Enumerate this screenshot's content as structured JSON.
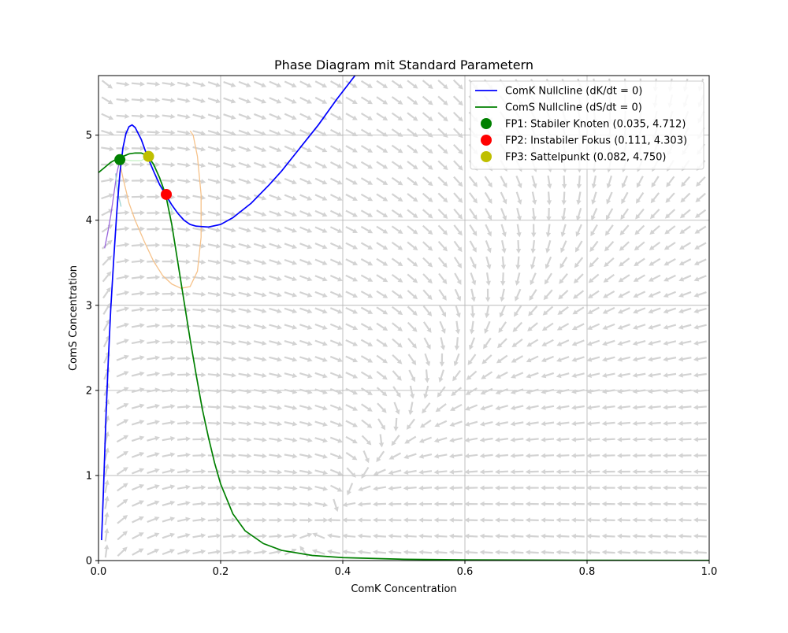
{
  "chart_data": {
    "type": "line",
    "title": "Phase Diagram mit Standard Parametern",
    "xlabel": "ComK Concentration",
    "ylabel": "ComS Concentration",
    "xlim": [
      0,
      1.0
    ],
    "ylim": [
      0,
      5.7
    ],
    "grid": true,
    "legend_position": "top-right",
    "x_ticks": [
      "0.0",
      "0.2",
      "0.4",
      "0.6",
      "0.8",
      "1.0"
    ],
    "y_ticks": [
      "0",
      "1",
      "2",
      "3",
      "4",
      "5"
    ],
    "series": [
      {
        "name": "ComK Nullcline (dK/dt = 0)",
        "color": "#0000ff",
        "points": [
          [
            0.005,
            0.24
          ],
          [
            0.008,
            0.8
          ],
          [
            0.012,
            1.65
          ],
          [
            0.016,
            2.35
          ],
          [
            0.02,
            2.95
          ],
          [
            0.025,
            3.55
          ],
          [
            0.03,
            4.1
          ],
          [
            0.035,
            4.55
          ],
          [
            0.04,
            4.85
          ],
          [
            0.045,
            5.02
          ],
          [
            0.05,
            5.1
          ],
          [
            0.055,
            5.12
          ],
          [
            0.06,
            5.09
          ],
          [
            0.07,
            4.95
          ],
          [
            0.08,
            4.75
          ],
          [
            0.09,
            4.58
          ],
          [
            0.1,
            4.42
          ],
          [
            0.11,
            4.3
          ],
          [
            0.12,
            4.18
          ],
          [
            0.13,
            4.08
          ],
          [
            0.14,
            4.0
          ],
          [
            0.15,
            3.95
          ],
          [
            0.16,
            3.93
          ],
          [
            0.18,
            3.92
          ],
          [
            0.2,
            3.95
          ],
          [
            0.22,
            4.03
          ],
          [
            0.25,
            4.2
          ],
          [
            0.28,
            4.42
          ],
          [
            0.3,
            4.58
          ],
          [
            0.33,
            4.85
          ],
          [
            0.36,
            5.12
          ],
          [
            0.39,
            5.42
          ],
          [
            0.42,
            5.7
          ]
        ]
      },
      {
        "name": "ComS Nullcline (dS/dt = 0)",
        "color": "#008000",
        "points": [
          [
            0.0,
            4.56
          ],
          [
            0.01,
            4.62
          ],
          [
            0.02,
            4.68
          ],
          [
            0.03,
            4.72
          ],
          [
            0.04,
            4.75
          ],
          [
            0.05,
            4.78
          ],
          [
            0.06,
            4.79
          ],
          [
            0.07,
            4.79
          ],
          [
            0.08,
            4.76
          ],
          [
            0.09,
            4.66
          ],
          [
            0.1,
            4.5
          ],
          [
            0.11,
            4.3
          ],
          [
            0.12,
            3.95
          ],
          [
            0.13,
            3.5
          ],
          [
            0.14,
            3.05
          ],
          [
            0.15,
            2.6
          ],
          [
            0.16,
            2.18
          ],
          [
            0.17,
            1.78
          ],
          [
            0.18,
            1.45
          ],
          [
            0.19,
            1.15
          ],
          [
            0.2,
            0.9
          ],
          [
            0.22,
            0.55
          ],
          [
            0.24,
            0.35
          ],
          [
            0.27,
            0.2
          ],
          [
            0.3,
            0.12
          ],
          [
            0.35,
            0.06
          ],
          [
            0.4,
            0.035
          ],
          [
            0.5,
            0.015
          ],
          [
            0.6,
            0.008
          ],
          [
            0.8,
            0.004
          ],
          [
            1.0,
            0.002
          ]
        ]
      }
    ],
    "trajectories": [
      {
        "color": "#9966dd",
        "points": [
          [
            0.01,
            3.67
          ],
          [
            0.015,
            3.85
          ],
          [
            0.02,
            4.05
          ],
          [
            0.025,
            4.3
          ],
          [
            0.03,
            4.55
          ],
          [
            0.035,
            4.71
          ]
        ]
      },
      {
        "color": "#9bd3d0",
        "points": [
          [
            0.028,
            4.55
          ],
          [
            0.03,
            4.4
          ],
          [
            0.033,
            4.28
          ],
          [
            0.037,
            4.16
          ]
        ]
      },
      {
        "color": "#f6c28a",
        "points": [
          [
            0.034,
            4.7
          ],
          [
            0.04,
            4.5
          ],
          [
            0.05,
            4.2
          ],
          [
            0.06,
            4.0
          ],
          [
            0.075,
            3.75
          ],
          [
            0.09,
            3.52
          ],
          [
            0.105,
            3.35
          ],
          [
            0.12,
            3.25
          ],
          [
            0.135,
            3.2
          ],
          [
            0.15,
            3.22
          ],
          [
            0.162,
            3.4
          ],
          [
            0.168,
            3.8
          ],
          [
            0.168,
            4.3
          ],
          [
            0.162,
            4.75
          ],
          [
            0.155,
            5.0
          ],
          [
            0.15,
            5.05
          ]
        ]
      },
      {
        "color": "#aef0d0",
        "points": [
          [
            0.08,
            4.75
          ],
          [
            0.092,
            4.62
          ],
          [
            0.103,
            4.45
          ],
          [
            0.113,
            4.25
          ],
          [
            0.122,
            4.08
          ]
        ]
      },
      {
        "color": "#c8f4c8",
        "points": [
          [
            0.082,
            4.75
          ],
          [
            0.07,
            4.7
          ],
          [
            0.055,
            4.7
          ],
          [
            0.042,
            4.71
          ]
        ]
      }
    ],
    "fixed_points": [
      {
        "name": "FP1: Stabiler Knoten (0.035, 4.712)",
        "x": 0.035,
        "y": 4.712,
        "color": "#008000"
      },
      {
        "name": "FP2: Instabiler Fokus (0.111, 4.303)",
        "x": 0.111,
        "y": 4.303,
        "color": "#ff0000"
      },
      {
        "name": "FP3: Sattelpunkt (0.082, 4.750)",
        "x": 0.082,
        "y": 4.75,
        "color": "#bfbf00"
      }
    ],
    "vector_field": {
      "color": "#d3d3d3",
      "x_count": 40,
      "y_count": 30
    }
  }
}
